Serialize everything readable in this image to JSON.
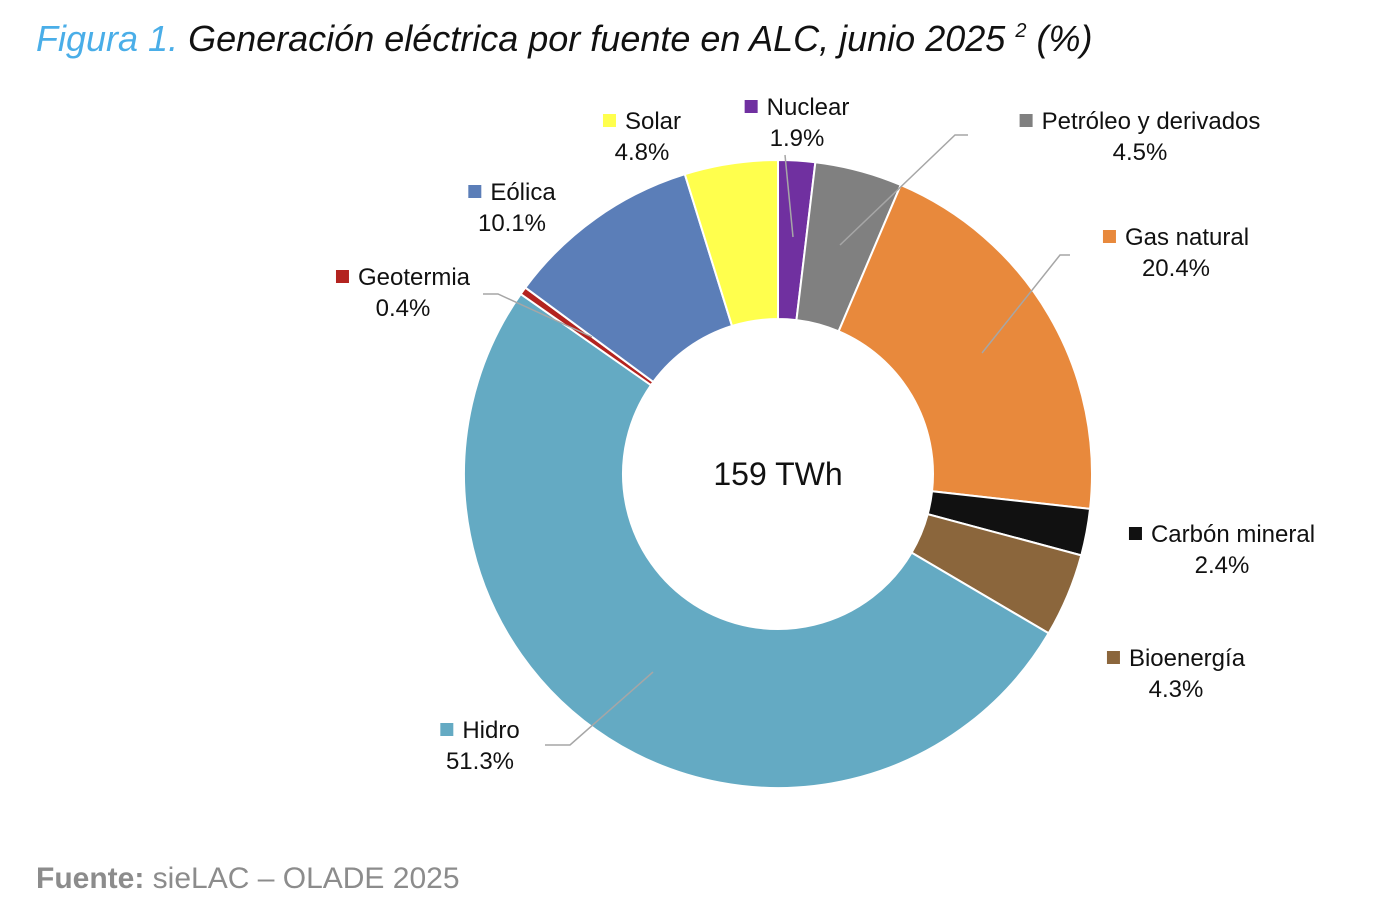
{
  "title": {
    "figure_label": "Figura 1.",
    "text": "Generación eléctrica por fuente en ALC, junio 2025",
    "footnote": "2",
    "unit": "(%)"
  },
  "chart_data": {
    "type": "pie",
    "variant": "donut",
    "title": "Generación eléctrica por fuente en ALC, junio 2025 (%)",
    "center_label": "159 TWh",
    "start": "top, clockwise",
    "slices": [
      {
        "name": "Nuclear",
        "value": 1.9,
        "pct_label": "1.9%",
        "color": "#7030A0"
      },
      {
        "name": "Petróleo y derivados",
        "value": 4.5,
        "pct_label": "4.5%",
        "color": "#808080"
      },
      {
        "name": "Gas natural",
        "value": 20.4,
        "pct_label": "20.4%",
        "color": "#E8893C"
      },
      {
        "name": "Carbón mineral",
        "value": 2.4,
        "pct_label": "2.4%",
        "color": "#111111"
      },
      {
        "name": "Bioenergía",
        "value": 4.3,
        "pct_label": "4.3%",
        "color": "#8B663C"
      },
      {
        "name": "Hidro",
        "value": 51.3,
        "pct_label": "51.3%",
        "color": "#64AAC3"
      },
      {
        "name": "Geotermia",
        "value": 0.4,
        "pct_label": "0.4%",
        "color": "#B3231F"
      },
      {
        "name": "Eólica",
        "value": 10.1,
        "pct_label": "10.1%",
        "color": "#5B7EB8"
      },
      {
        "name": "Solar",
        "value": 4.8,
        "pct_label": "4.8%",
        "color": "#FFFF4D"
      }
    ]
  },
  "source": {
    "label": "Fuente:",
    "text": "sieLAC – OLADE 2025"
  }
}
